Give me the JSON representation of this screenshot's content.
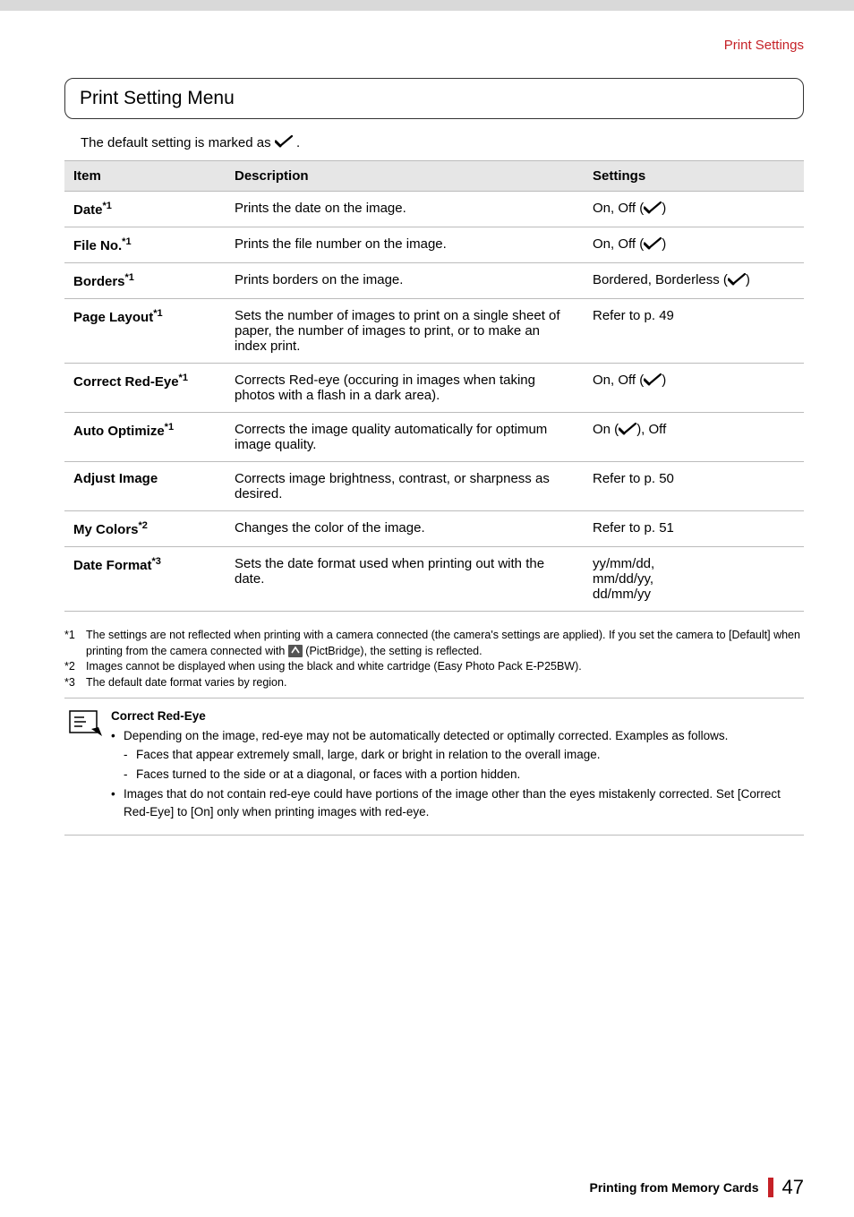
{
  "header": {
    "section_label": "Print Settings"
  },
  "menu": {
    "title": "Print Setting Menu",
    "intro": "The default setting is marked as ",
    "intro_suffix": "."
  },
  "table": {
    "cols": {
      "item": "Item",
      "desc": "Description",
      "set": "Settings"
    },
    "rows": [
      {
        "item": "Date",
        "sup": "*1",
        "desc": "Prints the date on the image.",
        "set_prefix": "On, Off (",
        "set_suffix": ")",
        "check": true
      },
      {
        "item": "File No.",
        "sup": "*1",
        "desc": "Prints the file number on the image.",
        "set_prefix": "On, Off (",
        "set_suffix": ")",
        "check": true
      },
      {
        "item": "Borders",
        "sup": "*1",
        "desc": "Prints borders on the image.",
        "set_prefix": "Bordered, Borderless (",
        "set_suffix": ")",
        "check": true
      },
      {
        "item": "Page Layout",
        "sup": "*1",
        "desc": "Sets the number of images to print on a single sheet of paper, the number of images to print, or to make an index print.",
        "set_prefix": "Refer to p. 49",
        "set_suffix": "",
        "check": false
      },
      {
        "item": "Correct Red-Eye",
        "sup": "*1",
        "desc": "Corrects Red-eye (occuring in images when taking photos with a flash in a dark area).",
        "set_prefix": "On, Off (",
        "set_suffix": ")",
        "check": true
      },
      {
        "item": "Auto Optimize",
        "sup": "*1",
        "desc": "Corrects the image quality automatically for optimum image quality.",
        "set_prefix": "On (",
        "set_suffix": "), Off",
        "check": true
      },
      {
        "item": "Adjust Image",
        "sup": "",
        "desc": "Corrects image brightness, contrast, or sharpness as desired.",
        "set_prefix": "Refer to p. 50",
        "set_suffix": "",
        "check": false
      },
      {
        "item": "My Colors",
        "sup": "*2",
        "desc": "Changes the color of the image.",
        "set_prefix": "Refer to p. 51",
        "set_suffix": "",
        "check": false
      },
      {
        "item": "Date Format",
        "sup": "*3",
        "desc": "Sets the date format used when printing out with the date.",
        "set_prefix": "yy/mm/dd,\nmm/dd/yy,\ndd/mm/yy",
        "set_suffix": "",
        "check": false
      }
    ]
  },
  "footnotes": {
    "f1_mark": "*1",
    "f1_text_a": "The settings are not reflected when printing with a camera connected (the camera's settings are applied). If you set the camera to [Default] when printing from the camera connected with ",
    "f1_text_b": " (PictBridge), the setting is reflected.",
    "f2_mark": "*2",
    "f2_text": "Images cannot be displayed when using the black and white cartridge (Easy Photo Pack E-P25BW).",
    "f3_mark": "*3",
    "f3_text": "The default date format varies by region."
  },
  "note": {
    "title": "Correct Red-Eye",
    "b1": "Depending on the image, red-eye may not be automatically detected or optimally corrected. Examples as follows.",
    "s1": "Faces that appear extremely small, large, dark or bright in relation to the overall image.",
    "s2": "Faces turned to the side or at a diagonal, or faces with a portion hidden.",
    "b2": "Images that do not contain red-eye could have portions of the image other than the eyes mistakenly corrected. Set [Correct Red-Eye] to [On] only when printing images with red-eye."
  },
  "footer": {
    "title": "Printing from Memory Cards",
    "page": "47"
  },
  "colors": {
    "accent": "#c52127",
    "header_bg": "#e6e6e6",
    "border": "#bbbbbb"
  }
}
